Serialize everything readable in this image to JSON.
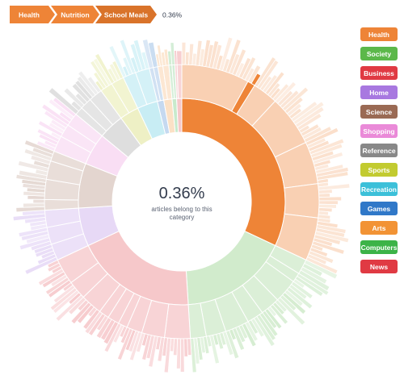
{
  "breadcrumb": {
    "items": [
      "Health",
      "Nutrition",
      "School Meals"
    ],
    "colors": [
      "#ee8437",
      "#ee8437",
      "#d9732a"
    ],
    "percentage": "0.36%"
  },
  "center": {
    "percentage": "0.36%",
    "caption_line1": "articles belong to this",
    "caption_line2": "category"
  },
  "legend": [
    {
      "label": "Health",
      "color": "#ee8437"
    },
    {
      "label": "Society",
      "color": "#5cb84a"
    },
    {
      "label": "Business",
      "color": "#e03a43"
    },
    {
      "label": "Home",
      "color": "#a878e0"
    },
    {
      "label": "Science",
      "color": "#9a6a54"
    },
    {
      "label": "Shopping",
      "color": "#ea8ad8"
    },
    {
      "label": "Reference",
      "color": "#888888"
    },
    {
      "label": "Sports",
      "color": "#c2cb30"
    },
    {
      "label": "Recreation",
      "color": "#3cc0d9"
    },
    {
      "label": "Games",
      "color": "#3078c8"
    },
    {
      "label": "Arts",
      "color": "#f29335"
    },
    {
      "label": "Computers",
      "color": "#3cb348"
    },
    {
      "label": "News",
      "color": "#e03a43"
    }
  ],
  "chart_data": {
    "type": "sunburst",
    "unit": "percent of articles",
    "highlighted_path": [
      "Health",
      "Nutrition",
      "School Meals"
    ],
    "highlighted_value": 0.36,
    "categories": [
      {
        "name": "Health",
        "color": "#ee8437",
        "value": 32.0
      },
      {
        "name": "Society",
        "color": "#5cb84a",
        "value": 17.0
      },
      {
        "name": "Business",
        "color": "#e03a43",
        "value": 19.0
      },
      {
        "name": "Home",
        "color": "#a878e0",
        "value": 6.0
      },
      {
        "name": "Science",
        "color": "#9a6a54",
        "value": 7.0
      },
      {
        "name": "Shopping",
        "color": "#ea8ad8",
        "value": 5.0
      },
      {
        "name": "Reference",
        "color": "#888888",
        "value": 4.0
      },
      {
        "name": "Sports",
        "color": "#c2cb30",
        "value": 3.0
      },
      {
        "name": "Recreation",
        "color": "#3cc0d9",
        "value": 3.2
      },
      {
        "name": "Games",
        "color": "#3078c8",
        "value": 1.0
      },
      {
        "name": "Arts",
        "color": "#f29335",
        "value": 1.3
      },
      {
        "name": "Computers",
        "color": "#3cb348",
        "value": 0.7
      },
      {
        "name": "News",
        "color": "#e03a43",
        "value": 0.8
      }
    ],
    "health_children": [
      {
        "name": "",
        "value": 8.0
      },
      {
        "name": "Nutrition",
        "value": 0.9,
        "highlighted": true
      },
      {
        "name": "",
        "value": 3.0
      },
      {
        "name": "",
        "value": 6.0
      },
      {
        "name": "",
        "value": 5.0
      },
      {
        "name": "",
        "value": 4.0
      },
      {
        "name": "",
        "value": 5.1
      }
    ],
    "nutrition_children": [
      {
        "name": "",
        "value": 0.54
      },
      {
        "name": "School Meals",
        "value": 0.36,
        "highlighted": true
      }
    ]
  }
}
